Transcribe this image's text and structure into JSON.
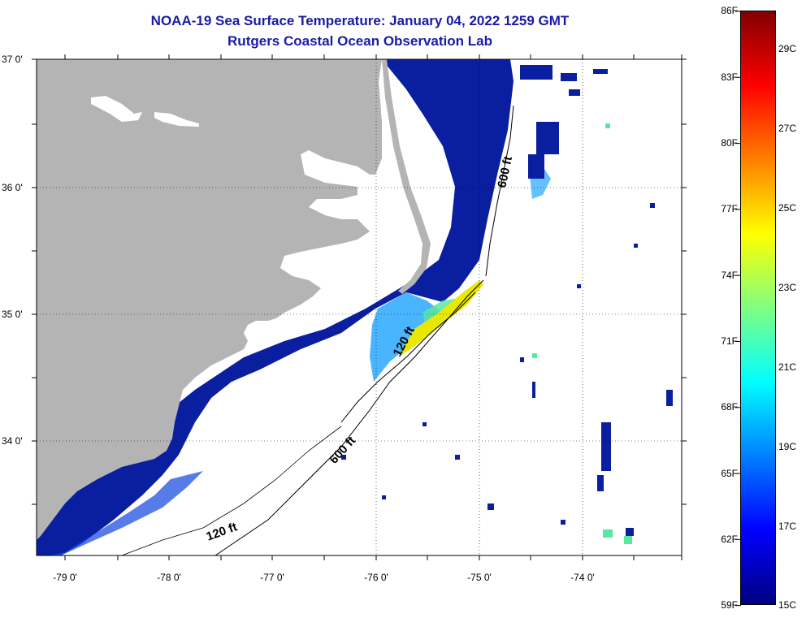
{
  "header": {
    "title": "NOAA-19 Sea Surface Temperature:  January 04, 2022 1259 GMT",
    "subtitle": "Rutgers Coastal Ocean Observation Lab"
  },
  "axes": {
    "latitude_labels": [
      "37 0'",
      "36 0'",
      "35 0'",
      "34 0'"
    ],
    "longitude_labels": [
      "-79 0'",
      "-78 0'",
      "-77 0'",
      "-76 0'",
      "-75 0'",
      "-74 0'"
    ]
  },
  "isobaths": [
    {
      "label": "600 ft",
      "where": "north"
    },
    {
      "label": "120 ft",
      "where": "center"
    },
    {
      "label": "600 ft",
      "where": "south"
    },
    {
      "label": "120 ft",
      "where": "southwest"
    }
  ],
  "colorbar": {
    "fahrenheit_labels": [
      "86F",
      "83F",
      "80F",
      "77F",
      "74F",
      "71F",
      "68F",
      "65F",
      "62F",
      "59F"
    ],
    "celsius_labels": [
      "29C",
      "27C",
      "25C",
      "23C",
      "21C",
      "19C",
      "17C",
      "15C"
    ],
    "colors": [
      "#000080",
      "#0000ff",
      "#0080ff",
      "#00ffff",
      "#80ff80",
      "#ffff00",
      "#ff8000",
      "#ff0000",
      "#800000"
    ]
  },
  "colors": {
    "land": "#b4b4b4",
    "cold_water": "#0a1ea0",
    "cloud_mask": "#ffffff",
    "title": "#1a1aa6"
  }
}
